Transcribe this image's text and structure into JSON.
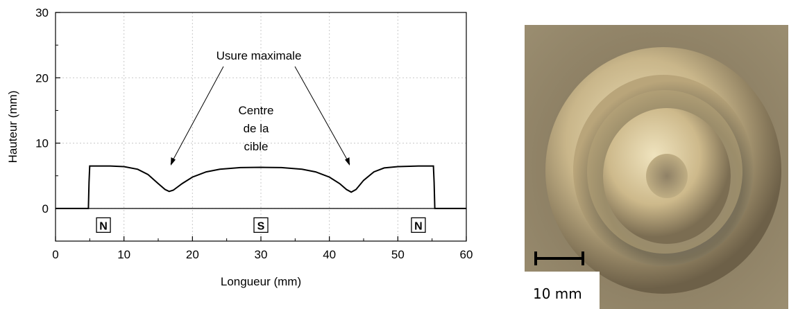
{
  "chart_data": {
    "type": "line",
    "xlabel": "Longueur (mm)",
    "ylabel": "Hauteur (mm)",
    "xlim": [
      0,
      60
    ],
    "ylim": [
      -5,
      30
    ],
    "xticks": [
      "0",
      "10",
      "20",
      "30",
      "40",
      "50",
      "60"
    ],
    "yticks": [
      "0",
      "10",
      "20",
      "30"
    ],
    "grid": true,
    "series": [
      {
        "x": [
          0,
          4.8,
          4.9,
          5.0,
          8,
          10,
          12,
          13.5,
          15,
          16,
          16.6,
          17.2,
          18.5,
          20,
          22,
          24,
          27,
          30,
          33,
          36,
          38,
          40,
          41.5,
          42.5,
          43.2,
          43.9,
          45,
          46.5,
          48,
          50,
          53,
          55.2,
          55.3,
          55.4,
          60
        ],
        "y": [
          0,
          0,
          4,
          6.5,
          6.5,
          6.4,
          6.0,
          5.2,
          3.8,
          2.9,
          2.6,
          2.8,
          3.8,
          4.8,
          5.6,
          6.0,
          6.25,
          6.3,
          6.25,
          6.0,
          5.6,
          4.8,
          3.8,
          2.9,
          2.5,
          2.9,
          4.3,
          5.6,
          6.2,
          6.4,
          6.5,
          6.5,
          4,
          0,
          0
        ]
      }
    ],
    "annotations": {
      "usure": "Usure maximale",
      "centre": [
        "Centre",
        "de la",
        "cible"
      ]
    },
    "poles": [
      {
        "label": "N",
        "x": 7
      },
      {
        "label": "S",
        "x": 30
      },
      {
        "label": "N",
        "x": 53
      }
    ]
  },
  "photo": {
    "scale_label": "10 mm"
  },
  "colors": {
    "line": "#000000",
    "grid": "#c8c8c8",
    "photo_bg": "#8f8162"
  }
}
